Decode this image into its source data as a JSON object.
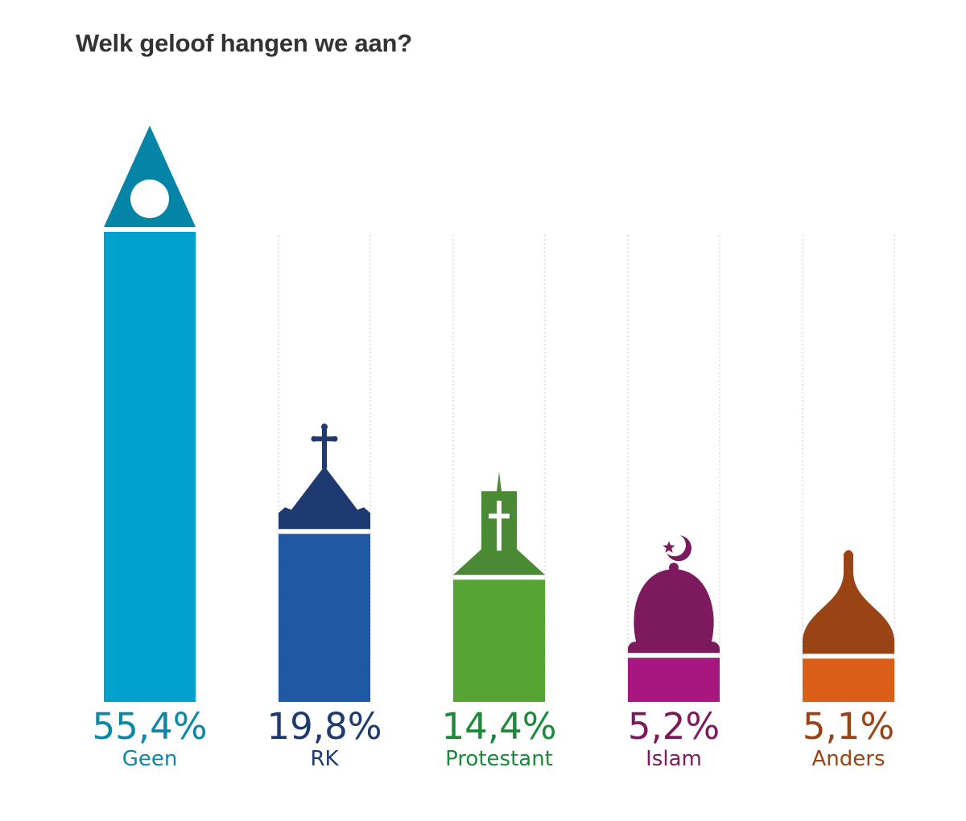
{
  "chart_data": {
    "type": "bar",
    "title": "Welk geloof hangen we aan?",
    "categories": [
      "Geen",
      "RK",
      "Protestant",
      "Islam",
      "Anders"
    ],
    "values": [
      55.4,
      19.8,
      14.4,
      5.2,
      5.1
    ],
    "value_labels": [
      "55,4%",
      "19,8%",
      "14,4%",
      "5,2%",
      "5,1%"
    ],
    "colors": {
      "bars": [
        "#00a1cc",
        "#2058a4",
        "#55a434",
        "#a8177f",
        "#d95f19"
      ],
      "tops": [
        "#0485a7",
        "#1e3a70",
        "#4a8a34",
        "#7d1a5e",
        "#9a4416"
      ],
      "labels": [
        "#0b87a8",
        "#1e3a70",
        "#1c8a3a",
        "#7d1a5e",
        "#9a4416"
      ]
    },
    "icons": [
      "triangle-circle-icon",
      "catholic-church-icon",
      "protestant-church-icon",
      "mosque-icon",
      "onion-dome-icon"
    ],
    "grid": "dotted vertical guides"
  }
}
